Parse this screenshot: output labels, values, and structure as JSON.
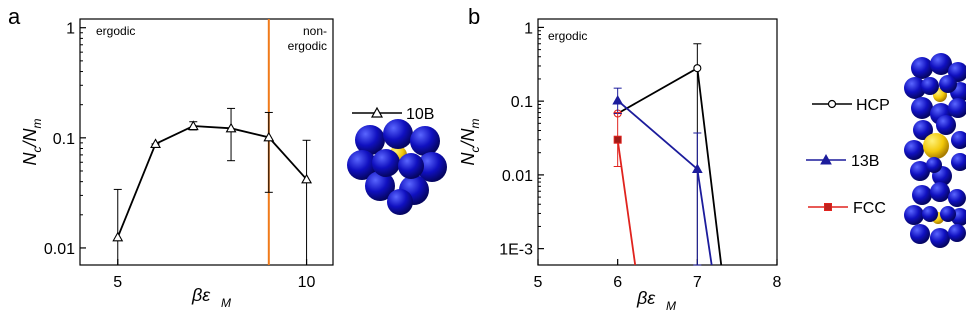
{
  "chart_data": [
    {
      "panel_label": "a",
      "type": "line",
      "xlabel": "βε_M",
      "xlabel_main": "βε",
      "xlabel_sub": "M",
      "ylabel": "N_c/N_m",
      "y_scale": "log",
      "xlim": [
        4,
        10.7
      ],
      "ylim": [
        0.007,
        1.2
      ],
      "xticks": [
        5,
        10
      ],
      "yticks": [
        {
          "v": 1,
          "label": "1"
        },
        {
          "v": 0.1,
          "label": "0.1"
        },
        {
          "v": 0.01,
          "label": "0.01"
        }
      ],
      "vline_x": 9,
      "vline_color": "#F07A1A",
      "region_left": "ergodic",
      "region_right_line1": "non-",
      "region_right_line2": "ergodic",
      "series": [
        {
          "name": "10B",
          "color": "#000000",
          "marker": "triangle-open",
          "x": [
            5,
            6,
            7,
            8,
            9,
            10
          ],
          "y": [
            0.0125,
            0.088,
            0.128,
            0.122,
            0.101,
            0.042
          ],
          "err_low": [
            0.007,
            0.088,
            0.118,
            0.062,
            0.032,
            0.007
          ],
          "err_high": [
            0.034,
            0.088,
            0.14,
            0.185,
            0.17,
            0.095
          ]
        }
      ]
    },
    {
      "panel_label": "b",
      "type": "line",
      "xlabel": "βε_M",
      "xlabel_main": "βε",
      "xlabel_sub": "M",
      "ylabel": "N_c/N_m",
      "y_scale": "log",
      "xlim": [
        5,
        8
      ],
      "ylim": [
        0.0006,
        1.3
      ],
      "xticks": [
        5,
        6,
        7,
        8
      ],
      "yticks": [
        {
          "v": 1,
          "label": "1"
        },
        {
          "v": 0.1,
          "label": "0.1"
        },
        {
          "v": 0.01,
          "label": "0.01"
        },
        {
          "v": 0.001,
          "label": "1E-3"
        }
      ],
      "region_left": "ergodic",
      "series": [
        {
          "name": "HCP",
          "color": "#000000",
          "marker": "circle-open",
          "x": [
            6,
            7,
            7.3
          ],
          "y": [
            0.068,
            0.28,
            0.0005
          ],
          "marker_points": 2,
          "err_low": [
            0.068,
            0.0005
          ],
          "err_high": [
            0.068,
            0.6
          ]
        },
        {
          "name": "13B",
          "color": "#1C1C9C",
          "marker": "triangle-filled",
          "x": [
            6,
            7,
            7.18
          ],
          "y": [
            0.102,
            0.012,
            0.0005
          ],
          "marker_points": 2,
          "err_low": [
            0.068,
            0.0005
          ],
          "err_high": [
            0.15,
            0.037
          ]
        },
        {
          "name": "FCC",
          "color": "#E0231E",
          "marker": "square-filled",
          "x": [
            6,
            6.22
          ],
          "y": [
            0.03,
            0.0005
          ],
          "marker_points": 1,
          "err_low": [
            0.013
          ],
          "err_high": [
            0.07
          ]
        }
      ]
    }
  ]
}
